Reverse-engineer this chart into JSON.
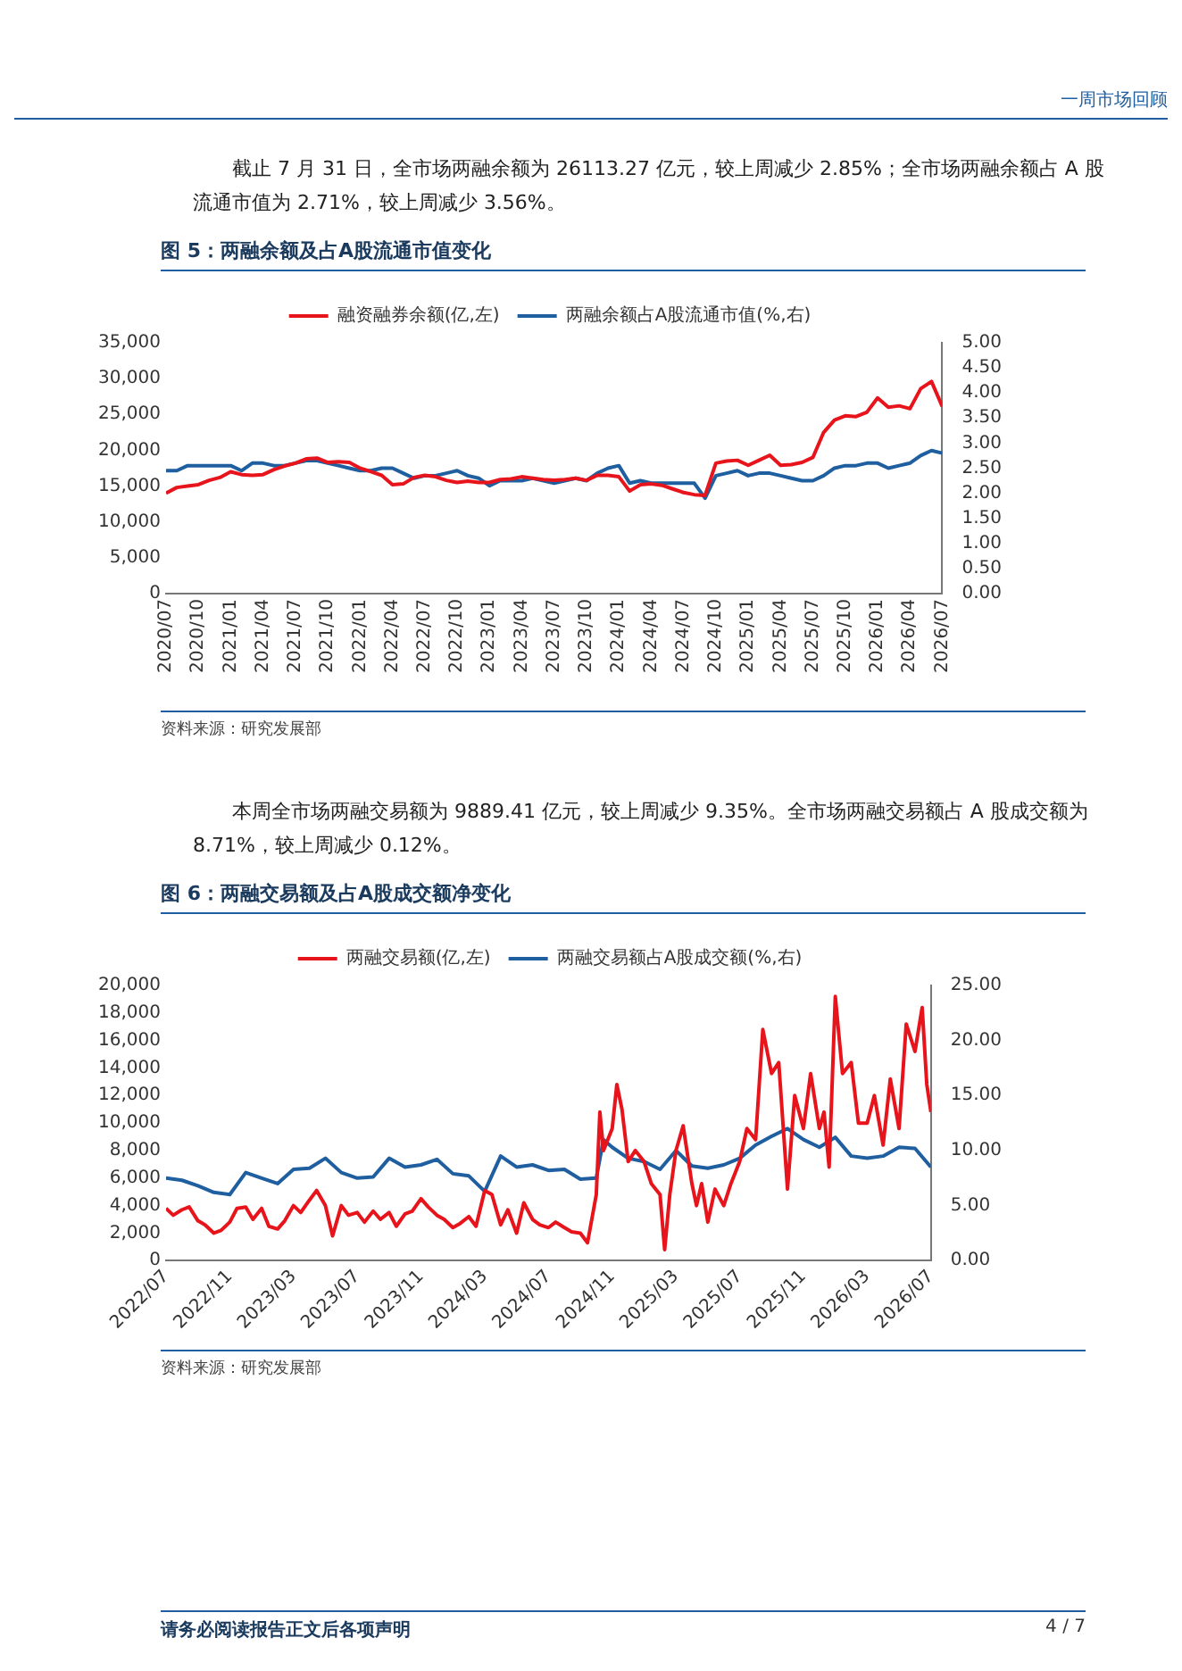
{
  "chart_data": [
    {
      "type": "line",
      "title": "图 5：两融余额及占A股流通市值变化",
      "annotations": [
        "一周市场回顾",
        "截止 7 月 31 日，全市场两融余额为 26113.27 亿元，较上周减少 2.85%；全市场两融余额占 A 股流通市值为 2.71%，较上周减少 3.56%。",
        "资料来源：研究发展部"
      ],
      "x": [
        "2020-07",
        "2020-08",
        "2020-09",
        "2020-10",
        "2020-11",
        "2020-12",
        "2021-01",
        "2021-02",
        "2021-03",
        "2021-04",
        "2021-05",
        "2021-06",
        "2021-07",
        "2021-08",
        "2021-09",
        "2021-10",
        "2021-11",
        "2021-12",
        "2022-01",
        "2022-02",
        "2022-03",
        "2022-04",
        "2022-05",
        "2022-06",
        "2022-07",
        "2022-08",
        "2022-09",
        "2022-10",
        "2022-11",
        "2022-12",
        "2023-01",
        "2023-02",
        "2023-03",
        "2023-04",
        "2023-05",
        "2023-06",
        "2023-07",
        "2023-08",
        "2023-09",
        "2023-10",
        "2023-11",
        "2023-12",
        "2024-01",
        "2024-02",
        "2024-03",
        "2024-04",
        "2024-05",
        "2024-06",
        "2024-07",
        "2024-08",
        "2024-09",
        "2024-10",
        "2024-11",
        "2024-12",
        "2025-01",
        "2025-02",
        "2025-03",
        "2025-04",
        "2025-05",
        "2025-06",
        "2025-07",
        "2025-08",
        "2025-09",
        "2025-10",
        "2025-11",
        "2025-12",
        "2026-01",
        "2026-02",
        "2026-03",
        "2026-04",
        "2026-05",
        "2026-06",
        "2026-07"
      ],
      "series": [
        {
          "name": "融资融券余额(亿,左)",
          "color": "#e8141c",
          "values": [
            14000,
            14800,
            15000,
            15200,
            15800,
            16200,
            17000,
            16600,
            16500,
            16600,
            17300,
            17800,
            18200,
            18800,
            18900,
            18300,
            18400,
            18300,
            17500,
            17000,
            16500,
            15200,
            15300,
            16200,
            16500,
            16300,
            15800,
            15500,
            15700,
            15500,
            15500,
            15900,
            16000,
            16300,
            16100,
            15900,
            15800,
            15900,
            16100,
            15800,
            16500,
            16500,
            16300,
            14300,
            15200,
            15300,
            15100,
            14600,
            14100,
            13800,
            13700,
            18200,
            18500,
            18600,
            17900,
            18600,
            19300,
            17900,
            18000,
            18300,
            19000,
            22500,
            24200,
            24800,
            24700,
            25300,
            27300,
            26000,
            26200,
            25800,
            28600,
            29600,
            26100
          ]
        },
        {
          "name": "两融余额占A股流通市值(%,右)",
          "color": "#1f5fa0",
          "axis": "y2",
          "values": [
            2.45,
            2.45,
            2.55,
            2.55,
            2.55,
            2.55,
            2.55,
            2.45,
            2.6,
            2.6,
            2.55,
            2.55,
            2.6,
            2.65,
            2.65,
            2.6,
            2.55,
            2.5,
            2.45,
            2.45,
            2.5,
            2.5,
            2.4,
            2.3,
            2.35,
            2.35,
            2.4,
            2.45,
            2.35,
            2.3,
            2.15,
            2.25,
            2.25,
            2.25,
            2.3,
            2.25,
            2.2,
            2.25,
            2.3,
            2.25,
            2.4,
            2.5,
            2.55,
            2.2,
            2.25,
            2.2,
            2.2,
            2.2,
            2.2,
            2.2,
            1.9,
            2.35,
            2.4,
            2.45,
            2.35,
            2.4,
            2.4,
            2.35,
            2.3,
            2.25,
            2.25,
            2.35,
            2.5,
            2.55,
            2.55,
            2.6,
            2.6,
            2.5,
            2.55,
            2.6,
            2.75,
            2.85,
            2.8
          ]
        }
      ],
      "xlim": [
        "2020-07",
        "2026-07"
      ],
      "xticks": [
        {
          "value": "2020-07",
          "label": "2020/07"
        },
        {
          "value": "2020-10",
          "label": "2020/10"
        },
        {
          "value": "2021-01",
          "label": "2021/01"
        },
        {
          "value": "2021-04",
          "label": "2021/04"
        },
        {
          "value": "2021-07",
          "label": "2021/07"
        },
        {
          "value": "2021-10",
          "label": "2021/10"
        },
        {
          "value": "2022-01",
          "label": "2022/01"
        },
        {
          "value": "2022-04",
          "label": "2022/04"
        },
        {
          "value": "2022-07",
          "label": "2022/07"
        },
        {
          "value": "2022-10",
          "label": "2022/10"
        },
        {
          "value": "2023-01",
          "label": "2023/01"
        },
        {
          "value": "2023-04",
          "label": "2023/04"
        },
        {
          "value": "2023-07",
          "label": "2023/07"
        },
        {
          "value": "2023-10",
          "label": "2023/10"
        },
        {
          "value": "2024-01",
          "label": "2024/01"
        },
        {
          "value": "2024-04",
          "label": "2024/04"
        },
        {
          "value": "2024-07",
          "label": "2024/07"
        },
        {
          "value": "2024-10",
          "label": "2024/10"
        },
        {
          "value": "2025-01",
          "label": "2025/01"
        },
        {
          "value": "2025-04",
          "label": "2025/04"
        },
        {
          "value": "2025-07",
          "label": "2025/07"
        },
        {
          "value": "2025-10",
          "label": "2025/10"
        },
        {
          "value": "2026-01",
          "label": "2026/01"
        },
        {
          "value": "2026-04",
          "label": "2026/04"
        },
        {
          "value": "2026-07",
          "label": "2026/07"
        }
      ],
      "ylim": [
        0,
        35000
      ],
      "yticks": [
        0,
        {
          "value": 5000,
          "label": "5,000"
        },
        {
          "value": 10000,
          "label": "10,000"
        },
        {
          "value": 15000,
          "label": "15,000"
        },
        {
          "value": 20000,
          "label": "20,000"
        },
        {
          "value": 25000,
          "label": "25,000"
        },
        {
          "value": 30000,
          "label": "30,000"
        },
        {
          "value": 35000,
          "label": "35,000"
        }
      ],
      "y2lim": [
        0,
        5
      ],
      "y2ticks": [
        {
          "value": 0,
          "label": "0.00"
        },
        {
          "value": 0.5,
          "label": "0.50"
        },
        {
          "value": 1,
          "label": "1.00"
        },
        {
          "value": 1.5,
          "label": "1.50"
        },
        {
          "value": 2,
          "label": "2.00"
        },
        {
          "value": 2.5,
          "label": "2.50"
        },
        {
          "value": 3,
          "label": "3.00"
        },
        {
          "value": 3.5,
          "label": "3.50"
        },
        {
          "value": 4,
          "label": "4.00"
        },
        {
          "value": 4.5,
          "label": "4.50"
        },
        {
          "value": 5,
          "label": "5.00"
        }
      ],
      "legend": "top",
      "marker": "none",
      "line_style": "solid"
    },
    {
      "type": "line",
      "title": "图 6：两融交易额及占A股成交额净变化",
      "annotations": [
        "本周全市场两融交易额为 9889.41 亿元，较上周减少 9.35%。全市场两融交易额占 A 股成交额为 8.71%，较上周减少 0.12%。",
        "资料来源：研究发展部",
        "请务必阅读报告正文后各项声明",
        "4 / 7"
      ],
      "series": [
        {
          "name": "两融交易额(亿,左)",
          "color": "#e8141c",
          "x": [
            "2022-07-01",
            "2022-07-15",
            "2022-08-01",
            "2022-08-15",
            "2022-09-01",
            "2022-09-15",
            "2022-10-01",
            "2022-10-15",
            "2022-11-01",
            "2022-11-15",
            "2022-12-01",
            "2022-12-15",
            "2023-01-01",
            "2023-01-15",
            "2023-02-01",
            "2023-02-15",
            "2023-03-01",
            "2023-03-15",
            "2023-04-01",
            "2023-04-15",
            "2023-05-01",
            "2023-05-15",
            "2023-06-01",
            "2023-06-15",
            "2023-07-01",
            "2023-07-15",
            "2023-08-01",
            "2023-08-15",
            "2023-09-01",
            "2023-09-15",
            "2023-10-01",
            "2023-10-15",
            "2023-11-01",
            "2023-11-15",
            "2023-12-01",
            "2023-12-15",
            "2024-01-01",
            "2024-01-15",
            "2024-02-01",
            "2024-02-15",
            "2024-03-01",
            "2024-03-15",
            "2024-04-01",
            "2024-04-15",
            "2024-05-01",
            "2024-05-15",
            "2024-06-01",
            "2024-06-15",
            "2024-07-01",
            "2024-07-15",
            "2024-08-01",
            "2024-08-15",
            "2024-09-01",
            "2024-09-15",
            "2024-10-01",
            "2024-10-08",
            "2024-10-15",
            "2024-11-01",
            "2024-11-10",
            "2024-11-20",
            "2024-12-01",
            "2024-12-15",
            "2025-01-01",
            "2025-01-15",
            "2025-02-01",
            "2025-02-10",
            "2025-02-20",
            "2025-03-01",
            "2025-03-15",
            "2025-04-01",
            "2025-04-10",
            "2025-04-20",
            "2025-05-01",
            "2025-05-15",
            "2025-06-01",
            "2025-06-15",
            "2025-07-01",
            "2025-07-15",
            "2025-08-01",
            "2025-08-15",
            "2025-09-01",
            "2025-09-15",
            "2025-10-01",
            "2025-10-15",
            "2025-11-01",
            "2025-11-15",
            "2025-12-01",
            "2025-12-10",
            "2025-12-20",
            "2026-01-01",
            "2026-01-15",
            "2026-02-01",
            "2026-02-15",
            "2026-03-01",
            "2026-03-15",
            "2026-04-01",
            "2026-04-15",
            "2026-05-01",
            "2026-05-15",
            "2026-06-01",
            "2026-06-15",
            "2026-06-24",
            "2026-07-01"
          ],
          "values": [
            3800,
            3300,
            3700,
            3900,
            2900,
            2600,
            2000,
            2200,
            2800,
            3800,
            3900,
            3000,
            3800,
            2500,
            2300,
            2900,
            4000,
            3500,
            4400,
            5100,
            4000,
            1800,
            4000,
            3300,
            3500,
            2800,
            3600,
            3000,
            3500,
            2500,
            3400,
            3600,
            4500,
            3900,
            3300,
            3000,
            2400,
            2700,
            3200,
            2500,
            5100,
            4800,
            2600,
            3700,
            2000,
            4200,
            3000,
            2600,
            2400,
            2800,
            2400,
            2100,
            2000,
            1300,
            4800,
            10800,
            8000,
            9600,
            12800,
            11000,
            7200,
            8000,
            7200,
            5600,
            4800,
            800,
            4800,
            8000,
            9800,
            5600,
            4000,
            5600,
            2800,
            5200,
            4000,
            5600,
            7200,
            9600,
            8800,
            16800,
            13600,
            14400,
            5200,
            12000,
            9600,
            13600,
            9600,
            10800,
            6800,
            19200,
            13600,
            14400,
            10000,
            10000,
            12000,
            8400,
            13200,
            9600,
            17200,
            15200,
            18400,
            12800,
            10800
          ]
        },
        {
          "name": "两融交易额占A股成交额(%,右)",
          "color": "#1f5fa0",
          "axis": "y2",
          "x": [
            "2022-07-01",
            "2022-08-01",
            "2022-09-01",
            "2022-10-01",
            "2022-11-01",
            "2022-12-01",
            "2023-01-01",
            "2023-02-01",
            "2023-03-01",
            "2023-04-01",
            "2023-05-01",
            "2023-06-01",
            "2023-07-01",
            "2023-08-01",
            "2023-09-01",
            "2023-10-01",
            "2023-11-01",
            "2023-12-01",
            "2024-01-01",
            "2024-02-01",
            "2024-03-01",
            "2024-04-01",
            "2024-05-01",
            "2024-06-01",
            "2024-07-01",
            "2024-08-01",
            "2024-09-01",
            "2024-10-01",
            "2024-10-15",
            "2024-11-01",
            "2024-12-01",
            "2025-01-01",
            "2025-02-01",
            "2025-03-01",
            "2025-04-01",
            "2025-05-01",
            "2025-06-01",
            "2025-07-01",
            "2025-08-01",
            "2025-09-01",
            "2025-10-01",
            "2025-11-01",
            "2025-12-01",
            "2026-01-01",
            "2026-02-01",
            "2026-03-01",
            "2026-04-01",
            "2026-05-01",
            "2026-06-01",
            "2026-07-01"
          ],
          "values": [
            7.5,
            7.3,
            6.8,
            6.2,
            6.0,
            8.0,
            7.5,
            7.0,
            8.3,
            8.4,
            9.3,
            8.0,
            7.5,
            7.6,
            9.3,
            8.5,
            8.7,
            9.2,
            7.9,
            7.7,
            6.3,
            9.5,
            8.5,
            8.7,
            8.2,
            8.3,
            7.4,
            7.5,
            11.0,
            10.3,
            9.3,
            9.0,
            8.3,
            10.0,
            8.6,
            8.4,
            8.7,
            9.3,
            10.5,
            11.3,
            12.0,
            11.0,
            10.3,
            11.2,
            9.5,
            9.3,
            9.5,
            10.3,
            10.2,
            8.5
          ]
        }
      ],
      "xlim": [
        "2022-07",
        "2026-07"
      ],
      "xticks": [
        {
          "value": "2022-07",
          "label": "2022/07"
        },
        {
          "value": "2022-11",
          "label": "2022/11"
        },
        {
          "value": "2023-03",
          "label": "2023/03"
        },
        {
          "value": "2023-07",
          "label": "2023/07"
        },
        {
          "value": "2023-11",
          "label": "2023/11"
        },
        {
          "value": "2024-03",
          "label": "2024/03"
        },
        {
          "value": "2024-07",
          "label": "2024/07"
        },
        {
          "value": "2024-11",
          "label": "2024/11"
        },
        {
          "value": "2025-03",
          "label": "2025/03"
        },
        {
          "value": "2025-07",
          "label": "2025/07"
        },
        {
          "value": "2025-11",
          "label": "2025/11"
        },
        {
          "value": "2026-03",
          "label": "2026/03"
        },
        {
          "value": "2026-07",
          "label": "2026/07"
        }
      ],
      "ylim": [
        0,
        20000
      ],
      "yticks": [
        0,
        {
          "value": 2000,
          "label": "2,000"
        },
        {
          "value": 4000,
          "label": "4,000"
        },
        {
          "value": 6000,
          "label": "6,000"
        },
        {
          "value": 8000,
          "label": "8,000"
        },
        {
          "value": 10000,
          "label": "10,000"
        },
        {
          "value": 12000,
          "label": "12,000"
        },
        {
          "value": 14000,
          "label": "14,000"
        },
        {
          "value": 16000,
          "label": "16,000"
        },
        {
          "value": 18000,
          "label": "18,000"
        },
        {
          "value": 20000,
          "label": "20,000"
        }
      ],
      "y2lim": [
        0,
        25
      ],
      "y2ticks": [
        {
          "value": 0,
          "label": "0.00"
        },
        {
          "value": 5,
          "label": "5.00"
        },
        {
          "value": 10,
          "label": "10.00"
        },
        {
          "value": 15,
          "label": "15.00"
        },
        {
          "value": 20,
          "label": "20.00"
        },
        {
          "value": 25,
          "label": "25.00"
        }
      ],
      "legend": "top",
      "marker": "none",
      "line_style": "solid"
    }
  ]
}
